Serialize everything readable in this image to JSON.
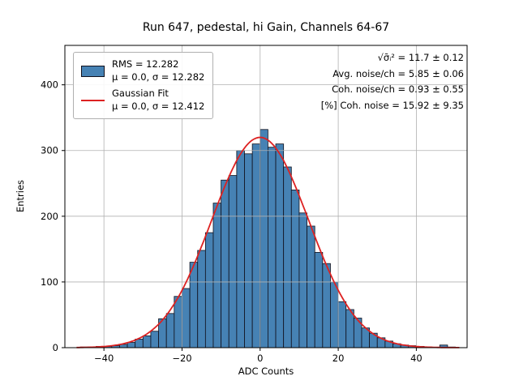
{
  "title": "Run 647, pedestal, hi Gain, Channels 64-67",
  "xlabel": "ADC Counts",
  "ylabel": "Entries",
  "legend": {
    "hist_line1": "RMS = 12.282",
    "hist_line2": "μ = 0.0, σ = 12.282",
    "fit_line1": "Gaussian Fit",
    "fit_line2": "μ = 0.0, σ = 12.412"
  },
  "annotations": [
    "√σ̄ᵢ²  = 11.7 ± 0.12",
    "Avg. noise/ch = 5.85 ± 0.06",
    "Coh. noise/ch = 0.93 ± 0.55",
    "[%] Coh. noise = 15.92 ± 9.35"
  ],
  "colors": {
    "bar_fill": "#4682b4",
    "bar_edge": "#10101c",
    "fit": "#dd2222",
    "grid": "#b0b0b0",
    "spine": "#000000",
    "text": "#000000"
  },
  "chart_data": {
    "type": "bar",
    "subtype": "histogram",
    "title": "Run 647, pedestal, hi Gain, Channels 64-67",
    "xlabel": "ADC Counts",
    "ylabel": "Entries",
    "bin_start": -46,
    "bin_width": 2,
    "counts": [
      1,
      1,
      2,
      2,
      3,
      5,
      8,
      13,
      18,
      25,
      44,
      52,
      78,
      90,
      130,
      148,
      175,
      220,
      255,
      262,
      300,
      295,
      310,
      332,
      305,
      310,
      275,
      240,
      205,
      185,
      145,
      128,
      100,
      70,
      58,
      45,
      30,
      22,
      15,
      10,
      6,
      4,
      3,
      2,
      1,
      0,
      4,
      1
    ],
    "hist_stats": {
      "rms": 12.282,
      "mu": 0.0,
      "sigma": 12.282
    },
    "fit": {
      "type": "gaussian",
      "mu": 0.0,
      "sigma": 12.412,
      "amplitude": 320
    },
    "xticks": [
      -40,
      -20,
      0,
      20,
      40
    ],
    "yticks": [
      0,
      100,
      200,
      300,
      400
    ],
    "xlim": [
      -50,
      53
    ],
    "ylim": [
      0,
      460
    ],
    "grid": true,
    "legend_position": "upper left",
    "stats_text": {
      "sqrt_sigma_i2": "11.7 ± 0.12",
      "avg_noise_per_ch": "5.85 ± 0.06",
      "coh_noise_per_ch": "0.93 ± 0.55",
      "pct_coh_noise": "15.92 ± 9.35"
    }
  }
}
